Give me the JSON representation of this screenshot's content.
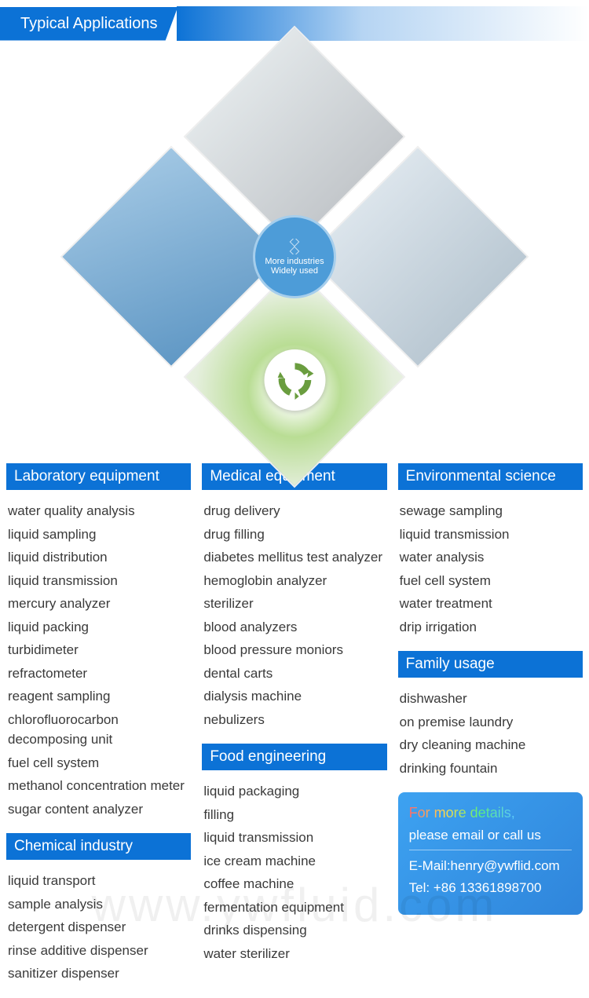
{
  "header": {
    "title": "Typical Applications"
  },
  "centerCircle": {
    "line1": "More industries",
    "line2": "Widely used"
  },
  "columns": {
    "left": [
      {
        "title": "Laboratory equipment",
        "items": [
          "water quality analysis",
          "liquid sampling",
          "liquid distribution",
          "liquid transmission",
          "mercury analyzer",
          "liquid packing",
          "turbidimeter",
          "refractometer",
          "reagent sampling",
          "chlorofluorocarbon decomposing unit",
          "fuel cell system",
          "methanol concentration meter",
          "sugar content analyzer"
        ]
      },
      {
        "title": "Chemical industry",
        "items": [
          "liquid transport",
          "sample analysis",
          "detergent dispenser",
          "rinse additive dispenser",
          "sanitizer dispenser"
        ]
      }
    ],
    "middle": [
      {
        "title": "Medical equipment",
        "items": [
          "drug delivery",
          "drug filling",
          "diabetes mellitus test analyzer",
          "hemoglobin analyzer",
          "sterilizer",
          "blood analyzers",
          "blood pressure moniors",
          "dental carts",
          "dialysis machine",
          "nebulizers"
        ]
      },
      {
        "title": "Food engineering",
        "items": [
          "liquid packaging",
          "filling",
          "liquid transmission",
          "ice cream machine",
          "coffee machine",
          "fermentation equipment",
          "drinks dispensing",
          "water sterilizer"
        ]
      }
    ],
    "right": [
      {
        "title": "Environmental science",
        "items": [
          "sewage sampling",
          "liquid transmission",
          "water analysis",
          "fuel cell system",
          "water treatment",
          "drip irrigation"
        ]
      },
      {
        "title": "Family usage",
        "items": [
          "dishwasher",
          "on premise laundry",
          "dry cleaning machine",
          "drinking fountain"
        ]
      }
    ]
  },
  "contact": {
    "title1": "For more details,",
    "title2": "please email or call us",
    "email": "E-Mail:henry@ywflid.com",
    "phone": "Tel: +86 13361898700"
  },
  "watermark": "www.ywfluid.com",
  "colors": {
    "primary": "#0c72d6",
    "text": "#3a3a3a",
    "contactBg1": "#3da2f1",
    "contactBg2": "#2f85db"
  }
}
